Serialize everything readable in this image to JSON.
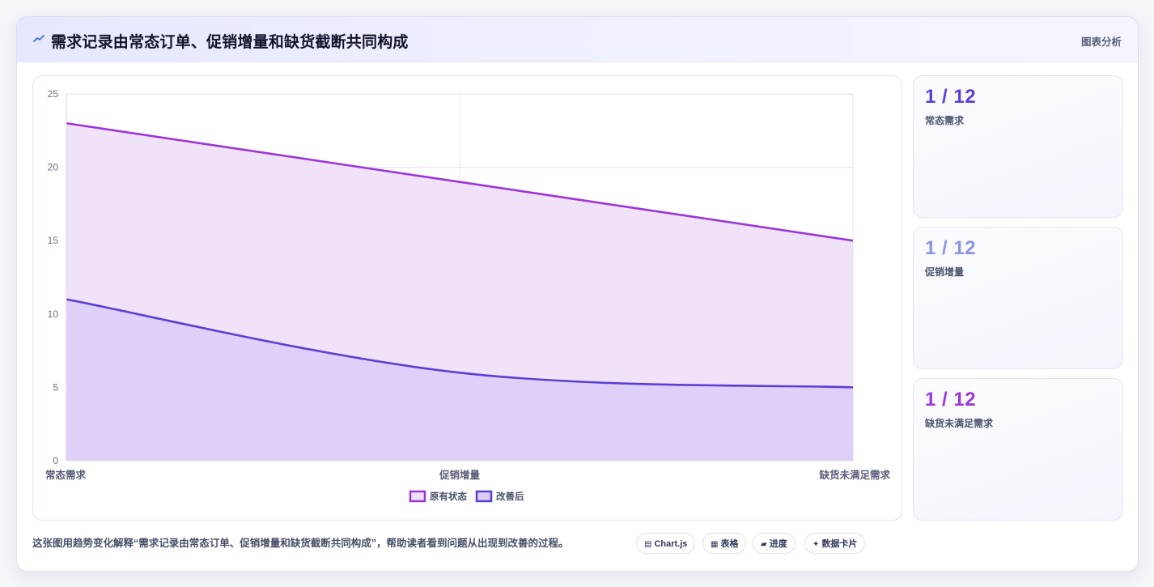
{
  "header": {
    "icon": "trend-line-icon",
    "title": "需求记录由常态订单、促销增量和缺货截断共同构成",
    "tag": "图表分析"
  },
  "stats": [
    {
      "value": "1 / 12",
      "label": "常态需求",
      "color": "#5b3fd6"
    },
    {
      "value": "1 / 12",
      "label": "促销增量",
      "color": "#8b93e6"
    },
    {
      "value": "1 / 12",
      "label": "缺货未满足需求",
      "color": "#9b36d8"
    }
  ],
  "footer": {
    "description": "这张图用趋势变化解释“需求记录由常态订单、促销增量和缺货截断共同构成”，帮助读者看到问题从出现到改善的过程。",
    "pills": [
      {
        "icon": "chart-icon",
        "glyph": "▤",
        "label": "Chart.js"
      },
      {
        "icon": "table-icon",
        "glyph": "▦",
        "label": "表格"
      },
      {
        "icon": "progress-icon",
        "glyph": "▰",
        "label": "进度"
      },
      {
        "icon": "sparkle-icon",
        "glyph": "✦",
        "label": "数据卡片"
      }
    ]
  },
  "chart_data": {
    "type": "area",
    "categories": [
      "常态需求",
      "促销增量",
      "缺货未满足需求"
    ],
    "series": [
      {
        "name": "原有状态",
        "values": [
          23,
          19,
          15
        ],
        "color": "#9b36d8",
        "fill": "#eee0f8"
      },
      {
        "name": "改善后",
        "values": [
          11,
          6,
          5
        ],
        "color": "#5b3fd6",
        "fill": "#dccdf8"
      }
    ],
    "ylim": [
      0,
      25
    ],
    "yticks": [
      0,
      5,
      10,
      15,
      20,
      25
    ],
    "grid": true,
    "legend": "bottom",
    "xlabel": "",
    "ylabel": ""
  }
}
